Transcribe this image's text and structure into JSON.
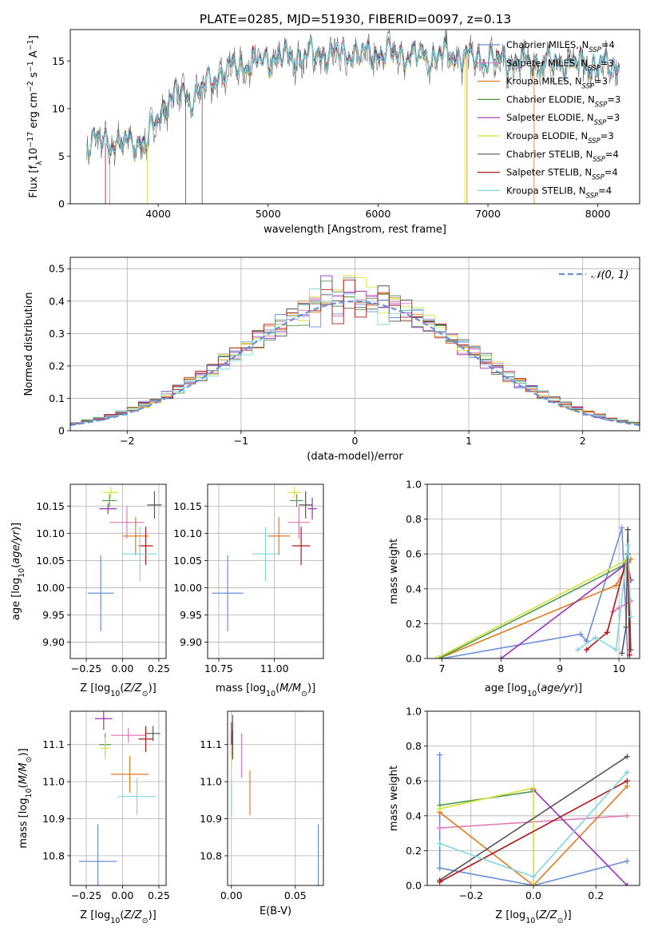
{
  "figure_title": "PLATE=0285, MJD=51930, FIBERID=0097, z=0.13",
  "series_colors": {
    "chabrier_miles": "#6a8fd8",
    "salpeter_miles": "#e07ab8",
    "kroupa_miles": "#e07b20",
    "chabrier_elodie": "#4a9a4a",
    "salpeter_elodie": "#9a30b8",
    "kroupa_elodie": "#d4e23a",
    "chabrier_stelib": "#555555",
    "salpeter_stelib": "#b01818",
    "kroupa_stelib": "#7fd6e0"
  },
  "chart_data": [
    {
      "id": "spectrum",
      "type": "line",
      "xlabel": "wavelength [Angstrom, rest frame]",
      "ylabel": "Flux [f_λ 10^-17 erg cm^-2 s^-1 A^-1]",
      "xlim": [
        3200,
        8380
      ],
      "ylim": [
        0,
        18.3
      ],
      "xticks": [
        4000,
        5000,
        6000,
        7000,
        8000
      ],
      "yticks": [
        0,
        5,
        10,
        15
      ],
      "grid": false,
      "legend_position": "upper-right",
      "legend": [
        {
          "label": "Chabrier MILES, N_SSP=4",
          "color": "#6a8fd8"
        },
        {
          "label": "Salpeter MILES, N_SSP=3",
          "color": "#e07ab8"
        },
        {
          "label": "Kroupa MILES, N_SSP=3",
          "color": "#e07b20"
        },
        {
          "label": "Chabrier ELODIE, N_SSP=3",
          "color": "#4a9a4a"
        },
        {
          "label": "Salpeter ELODIE, N_SSP=3",
          "color": "#9a30b8"
        },
        {
          "label": "Kroupa ELODIE, N_SSP=3",
          "color": "#d4e23a"
        },
        {
          "label": "Chabrier STELIB, N_SSP=4",
          "color": "#555555"
        },
        {
          "label": "Salpeter STELIB, N_SSP=4",
          "color": "#b01818"
        },
        {
          "label": "Kroupa STELIB, N_SSP=4",
          "color": "#7fd6e0"
        }
      ],
      "continuum": {
        "x": [
          3350,
          3500,
          3700,
          3900,
          4000,
          4100,
          4200,
          4300,
          4500,
          4700,
          4900,
          5100,
          5300,
          5500,
          5700,
          5900,
          6100,
          6300,
          6500,
          6700,
          6900,
          7100,
          7300,
          7500,
          7700,
          7900,
          8200
        ],
        "y": [
          6.3,
          6.4,
          6.2,
          6.4,
          9.0,
          10.8,
          11.5,
          10.8,
          13.0,
          14.3,
          14.7,
          15.2,
          15.3,
          15.5,
          15.6,
          15.6,
          15.6,
          15.4,
          15.4,
          15.4,
          15.1,
          14.9,
          14.7,
          14.7,
          14.6,
          14.5,
          14.3
        ]
      }
    },
    {
      "id": "residuals",
      "type": "histogram",
      "xlabel": "(data-model)/error",
      "ylabel": "Normed distribution",
      "xlim": [
        -2.5,
        2.5
      ],
      "ylim": [
        0,
        0.535
      ],
      "xticks": [
        -2,
        -1,
        0,
        1,
        2
      ],
      "yticks": [
        0,
        0.1,
        0.2,
        0.3,
        0.4,
        0.5
      ],
      "grid": true,
      "legend_position": "upper-right",
      "gaussian_label": "𝒩(0, 1)",
      "gaussian_color": "#6a8fd8",
      "bin_width": 0.1
    },
    {
      "id": "age_vs_Z",
      "type": "errorbar",
      "xlabel": "Z [log10(Z/Z⊙)]",
      "ylabel": "age [log10(age/yr)]",
      "xlim": [
        -0.36,
        0.3
      ],
      "ylim": [
        9.87,
        10.19
      ],
      "xticks": [
        -0.25,
        0.0,
        0.25
      ],
      "xticklabels": [
        "−0.25",
        "0.00",
        "0.25"
      ],
      "yticks": [
        9.9,
        9.95,
        10.0,
        10.05,
        10.1,
        10.15
      ],
      "yticklabels": [
        "9.90",
        "9.95",
        "10.00",
        "10.05",
        "10.10",
        "10.15"
      ],
      "grid": true,
      "points": [
        {
          "series": "chabrier_miles",
          "x": -0.15,
          "xerr": 0.09,
          "y": 9.99,
          "yerr": 0.07
        },
        {
          "series": "salpeter_miles",
          "x": 0.03,
          "xerr": 0.12,
          "y": 10.12,
          "yerr": 0.03
        },
        {
          "series": "kroupa_miles",
          "x": 0.09,
          "xerr": 0.09,
          "y": 10.095,
          "yerr": 0.035
        },
        {
          "series": "chabrier_elodie",
          "x": -0.09,
          "xerr": 0.05,
          "y": 10.16,
          "yerr": 0.012
        },
        {
          "series": "salpeter_elodie",
          "x": -0.1,
          "xerr": 0.06,
          "y": 10.145,
          "yerr": 0.01
        },
        {
          "series": "kroupa_elodie",
          "x": -0.08,
          "xerr": 0.05,
          "y": 10.175,
          "yerr": 0.01
        },
        {
          "series": "chabrier_stelib",
          "x": 0.22,
          "xerr": 0.05,
          "y": 10.152,
          "yerr": 0.025
        },
        {
          "series": "salpeter_stelib",
          "x": 0.16,
          "xerr": 0.05,
          "y": 10.077,
          "yerr": 0.035
        },
        {
          "series": "kroupa_stelib",
          "x": 0.12,
          "xerr": 0.12,
          "y": 10.062,
          "yerr": 0.05
        }
      ]
    },
    {
      "id": "age_vs_mass",
      "type": "errorbar",
      "xlabel": "mass [log10(M/M⊙)]",
      "ylabel": "",
      "xlim": [
        10.7,
        11.22
      ],
      "ylim": [
        9.87,
        10.19
      ],
      "xticks": [
        10.75,
        11.0
      ],
      "xticklabels": [
        "10.75",
        "11.00"
      ],
      "yticks": [
        9.9,
        9.95,
        10.0,
        10.05,
        10.1,
        10.15
      ],
      "yticklabels": [
        "9.90",
        "9.95",
        "10.00",
        "10.05",
        "10.10",
        "10.15"
      ],
      "grid": true,
      "points": [
        {
          "series": "chabrier_miles",
          "x": 10.79,
          "xerr": 0.07,
          "y": 9.99,
          "yerr": 0.07
        },
        {
          "series": "salpeter_miles",
          "x": 11.11,
          "xerr": 0.05,
          "y": 10.12,
          "yerr": 0.03
        },
        {
          "series": "kroupa_miles",
          "x": 11.02,
          "xerr": 0.05,
          "y": 10.095,
          "yerr": 0.035
        },
        {
          "series": "chabrier_elodie",
          "x": 11.1,
          "xerr": 0.03,
          "y": 10.16,
          "yerr": 0.012
        },
        {
          "series": "salpeter_elodie",
          "x": 11.17,
          "xerr": 0.02,
          "y": 10.145,
          "yerr": 0.02
        },
        {
          "series": "kroupa_elodie",
          "x": 11.09,
          "xerr": 0.03,
          "y": 10.175,
          "yerr": 0.01
        },
        {
          "series": "chabrier_stelib",
          "x": 11.14,
          "xerr": 0.03,
          "y": 10.152,
          "yerr": 0.025
        },
        {
          "series": "salpeter_stelib",
          "x": 11.12,
          "xerr": 0.04,
          "y": 10.077,
          "yerr": 0.035
        },
        {
          "series": "kroupa_stelib",
          "x": 10.96,
          "xerr": 0.06,
          "y": 10.062,
          "yerr": 0.05
        }
      ]
    },
    {
      "id": "mass_weight_vs_age",
      "type": "line",
      "xlabel": "age [log10(age/yr)]",
      "ylabel": "mass weight",
      "xlim": [
        6.75,
        10.35
      ],
      "ylim": [
        0,
        1.0
      ],
      "xticks": [
        7,
        8,
        9,
        10
      ],
      "yticks": [
        0,
        0.2,
        0.4,
        0.6,
        0.8,
        1.0
      ],
      "yticklabels": [
        "0.0",
        "0.2",
        "0.4",
        "0.6",
        "0.8",
        "1.0"
      ],
      "grid": true,
      "series": [
        {
          "name": "Chabrier MILES",
          "color": "#6a8fd8",
          "x": [
            7.0,
            9.35,
            9.45,
            10.05,
            10.15
          ],
          "y": [
            0.0,
            0.14,
            0.1,
            0.75,
            0.0
          ]
        },
        {
          "name": "Salpeter MILES",
          "color": "#e07ab8",
          "x": [
            9.9,
            10.0,
            10.2
          ],
          "y": [
            0.27,
            0.29,
            0.33
          ]
        },
        {
          "name": "Kroupa MILES",
          "color": "#e07b20",
          "x": [
            6.95,
            9.95,
            10.2
          ],
          "y": [
            0.0,
            0.42,
            0.57
          ]
        },
        {
          "name": "Chabrier ELODIE",
          "color": "#4a9a4a",
          "x": [
            6.95,
            10.1,
            10.2
          ],
          "y": [
            0.0,
            0.54,
            0.45
          ]
        },
        {
          "name": "Salpeter ELODIE",
          "color": "#9a30b8",
          "x": [
            8.0,
            10.15,
            10.2
          ],
          "y": [
            0.0,
            0.55,
            0.45
          ]
        },
        {
          "name": "Kroupa ELODIE",
          "color": "#d4e23a",
          "x": [
            6.9,
            10.1,
            10.15
          ],
          "y": [
            0.0,
            0.56,
            0.45
          ]
        },
        {
          "name": "Chabrier STELIB",
          "color": "#555555",
          "x": [
            10.05,
            10.12,
            10.15,
            10.2
          ],
          "y": [
            0.03,
            0.18,
            0.74,
            0.05
          ]
        },
        {
          "name": "Salpeter STELIB",
          "color": "#b01818",
          "x": [
            9.45,
            9.8,
            10.15,
            10.18
          ],
          "y": [
            0.05,
            0.15,
            0.6,
            0.02
          ]
        },
        {
          "name": "Kroupa STELIB",
          "color": "#7fd6e0",
          "x": [
            9.3,
            9.6,
            9.95,
            10.15,
            10.2
          ],
          "y": [
            0.05,
            0.12,
            0.05,
            0.65,
            0.24
          ]
        }
      ]
    },
    {
      "id": "mass_vs_Z",
      "type": "errorbar",
      "xlabel": "Z [log10(Z/Z⊙)]",
      "ylabel": "mass [log10(M/M⊙)]",
      "xlim": [
        -0.36,
        0.3
      ],
      "ylim": [
        10.72,
        11.19
      ],
      "xticks": [
        -0.25,
        0.0,
        0.25
      ],
      "xticklabels": [
        "−0.25",
        "0.00",
        "0.25"
      ],
      "yticks": [
        10.8,
        10.9,
        11.0,
        11.1
      ],
      "yticklabels": [
        "10.8",
        "10.9",
        "11.0",
        "11.1"
      ],
      "grid": true,
      "points": [
        {
          "series": "chabrier_miles",
          "x": -0.17,
          "xerr": 0.13,
          "y": 10.785,
          "yerr": 0.1
        },
        {
          "series": "salpeter_miles",
          "x": 0.04,
          "xerr": 0.12,
          "y": 11.125,
          "yerr": 0.02
        },
        {
          "series": "kroupa_miles",
          "x": 0.05,
          "xerr": 0.13,
          "y": 11.02,
          "yerr": 0.05
        },
        {
          "series": "chabrier_elodie",
          "x": -0.12,
          "xerr": 0.04,
          "y": 11.1,
          "yerr": 0.03
        },
        {
          "series": "salpeter_elodie",
          "x": -0.13,
          "xerr": 0.06,
          "y": 11.17,
          "yerr": 0.03
        },
        {
          "series": "kroupa_elodie",
          "x": -0.12,
          "xerr": 0.03,
          "y": 11.09,
          "yerr": 0.03
        },
        {
          "series": "chabrier_stelib",
          "x": 0.21,
          "xerr": 0.05,
          "y": 11.13,
          "yerr": 0.02
        },
        {
          "series": "salpeter_stelib",
          "x": 0.16,
          "xerr": 0.05,
          "y": 11.115,
          "yerr": 0.035
        },
        {
          "series": "kroupa_stelib",
          "x": 0.1,
          "xerr": 0.13,
          "y": 10.96,
          "yerr": 0.05
        }
      ]
    },
    {
      "id": "mass_vs_ebv",
      "type": "errorbar",
      "xlabel": "E(B-V)",
      "ylabel": "",
      "xlim": [
        -0.003,
        0.072
      ],
      "ylim": [
        10.72,
        11.19
      ],
      "xticks": [
        0.0,
        0.05
      ],
      "xticklabels": [
        "0.00",
        "0.05"
      ],
      "yticks": [
        10.8,
        10.9,
        11.0,
        11.1
      ],
      "yticklabels": [
        "10.8",
        "10.9",
        "11.0",
        "11.1"
      ],
      "grid": true,
      "points": [
        {
          "series": "chabrier_miles",
          "x": 0.068,
          "xerr": 0,
          "y": 10.785,
          "yerr": 0.1
        },
        {
          "series": "salpeter_miles",
          "x": 0.008,
          "xerr": 0,
          "y": 11.07,
          "yerr": 0.06
        },
        {
          "series": "kroupa_miles",
          "x": 0.0145,
          "xerr": 0,
          "y": 10.97,
          "yerr": 0.06
        },
        {
          "series": "chabrier_elodie",
          "x": 0.0,
          "xerr": 0,
          "y": 11.1,
          "yerr": 0.03
        },
        {
          "series": "salpeter_elodie",
          "x": 0.001,
          "xerr": 0,
          "y": 11.14,
          "yerr": 0.04
        },
        {
          "series": "kroupa_elodie",
          "x": 0.0,
          "xerr": 0,
          "y": 11.07,
          "yerr": 0.03
        },
        {
          "series": "chabrier_stelib",
          "x": 0.0,
          "xerr": 0,
          "y": 11.13,
          "yerr": 0.03
        },
        {
          "series": "salpeter_stelib",
          "x": 0.001,
          "xerr": 0,
          "y": 11.1,
          "yerr": 0.04
        },
        {
          "series": "kroupa_stelib",
          "x": 0.0,
          "xerr": 0,
          "y": 10.96,
          "yerr": 0.05
        }
      ]
    },
    {
      "id": "mass_weight_vs_Z",
      "type": "line",
      "xlabel": "Z [log10(Z/Z⊙)]",
      "ylabel": "mass weight",
      "xlim": [
        -0.34,
        0.34
      ],
      "ylim": [
        0,
        1.0
      ],
      "xticks": [
        -0.2,
        0.0,
        0.2
      ],
      "xticklabels": [
        "−0.2",
        "0.0",
        "0.2"
      ],
      "yticks": [
        0,
        0.2,
        0.4,
        0.6,
        0.8,
        1.0
      ],
      "yticklabels": [
        "0.0",
        "0.2",
        "0.4",
        "0.6",
        "0.8",
        "1.0"
      ],
      "grid": true,
      "series": [
        {
          "name": "Chabrier MILES",
          "color": "#6a8fd8",
          "x": [
            -0.3,
            -0.3,
            -0.3,
            0.0,
            0.3
          ],
          "y": [
            0.75,
            0.1,
            0.1,
            0.0,
            0.14
          ]
        },
        {
          "name": "Salpeter MILES",
          "color": "#e07ab8",
          "x": [
            -0.3,
            0.3
          ],
          "y": [
            0.33,
            0.4
          ]
        },
        {
          "name": "Kroupa MILES",
          "color": "#e07b20",
          "x": [
            -0.3,
            0.0,
            0.3
          ],
          "y": [
            0.42,
            0.0,
            0.57
          ]
        },
        {
          "name": "Chabrier ELODIE",
          "color": "#4a9a4a",
          "x": [
            -0.3,
            0.0
          ],
          "y": [
            0.46,
            0.54
          ]
        },
        {
          "name": "Salpeter ELODIE",
          "color": "#9a30b8",
          "x": [
            0.0,
            0.3
          ],
          "y": [
            0.55,
            0.0
          ]
        },
        {
          "name": "Kroupa ELODIE",
          "color": "#d4e23a",
          "x": [
            -0.3,
            0.0,
            0.0
          ],
          "y": [
            0.44,
            0.56,
            0.0
          ]
        },
        {
          "name": "Chabrier STELIB",
          "color": "#555555",
          "x": [
            -0.3,
            0.3
          ],
          "y": [
            0.03,
            0.74
          ]
        },
        {
          "name": "Salpeter STELIB",
          "color": "#b01818",
          "x": [
            -0.3,
            0.3
          ],
          "y": [
            0.02,
            0.6
          ]
        },
        {
          "name": "Kroupa STELIB",
          "color": "#7fd6e0",
          "x": [
            -0.3,
            0.0,
            0.3
          ],
          "y": [
            0.24,
            0.05,
            0.65
          ]
        }
      ]
    }
  ]
}
